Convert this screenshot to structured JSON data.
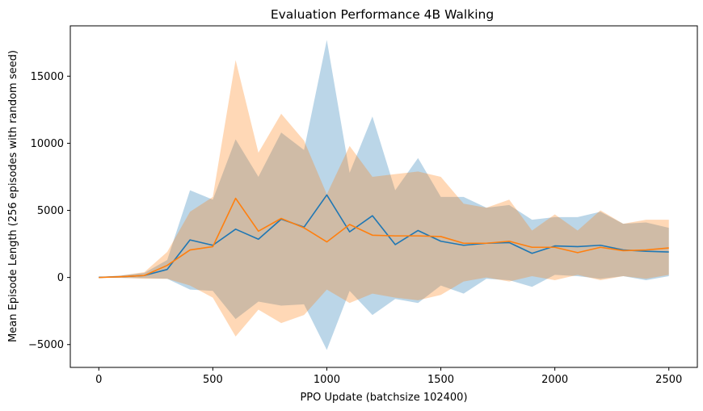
{
  "chart_data": {
    "type": "line",
    "title": "Evaluation Performance 4B Walking",
    "xlabel": "PPO Update (batchsize 102400)",
    "ylabel": "Mean Episode Length (256 episodes with random seed)",
    "xlim": [
      -125,
      2625
    ],
    "ylim": [
      -6700,
      18750
    ],
    "xticks": [
      0,
      500,
      1000,
      1500,
      2000,
      2500
    ],
    "yticks": [
      -5000,
      0,
      5000,
      10000,
      15000
    ],
    "grid": false,
    "x": [
      0,
      100,
      200,
      300,
      400,
      500,
      600,
      700,
      800,
      900,
      1000,
      1100,
      1200,
      1300,
      1400,
      1500,
      1600,
      1700,
      1800,
      1900,
      2000,
      2100,
      2200,
      2300,
      2400,
      2500
    ],
    "series": [
      {
        "color": "#1f77b4",
        "band_opacity": 0.3,
        "mean": [
          10,
          60,
          150,
          600,
          2800,
          2400,
          3600,
          2850,
          4350,
          3750,
          6150,
          3400,
          4600,
          2450,
          3500,
          2700,
          2400,
          2550,
          2600,
          1800,
          2350,
          2300,
          2400,
          2050,
          1950,
          1900
        ],
        "upper": [
          30,
          150,
          350,
          1300,
          6500,
          5800,
          10300,
          7500,
          10800,
          9500,
          17700,
          7800,
          12000,
          6500,
          8900,
          6000,
          6000,
          5200,
          5400,
          4300,
          4500,
          4500,
          4900,
          4000,
          4100,
          3700
        ],
        "lower": [
          -10,
          -30,
          -50,
          -100,
          -900,
          -1000,
          -3100,
          -1800,
          -2100,
          -2000,
          -5400,
          -1000,
          -2800,
          -1600,
          -1900,
          -600,
          -1200,
          -100,
          -200,
          -700,
          200,
          100,
          -100,
          100,
          -200,
          100
        ]
      },
      {
        "color": "#ff7f0e",
        "band_opacity": 0.3,
        "mean": [
          0,
          60,
          150,
          900,
          2050,
          2300,
          5900,
          3450,
          4400,
          3700,
          2650,
          3950,
          3150,
          3100,
          3100,
          3050,
          2550,
          2550,
          2700,
          2250,
          2250,
          1850,
          2250,
          2000,
          2050,
          2200
        ],
        "upper": [
          20,
          150,
          400,
          1900,
          4900,
          6000,
          16200,
          9300,
          12200,
          10200,
          6200,
          9800,
          7500,
          7700,
          7900,
          7500,
          5500,
          5200,
          5800,
          3500,
          4700,
          3500,
          5000,
          4000,
          4300,
          4300
        ],
        "lower": [
          -20,
          -30,
          -100,
          -100,
          -600,
          -1500,
          -4400,
          -2400,
          -3400,
          -2800,
          -900,
          -1900,
          -1200,
          -1500,
          -1700,
          -1300,
          -300,
          0,
          -300,
          100,
          -200,
          200,
          -200,
          100,
          -100,
          200
        ]
      }
    ]
  }
}
